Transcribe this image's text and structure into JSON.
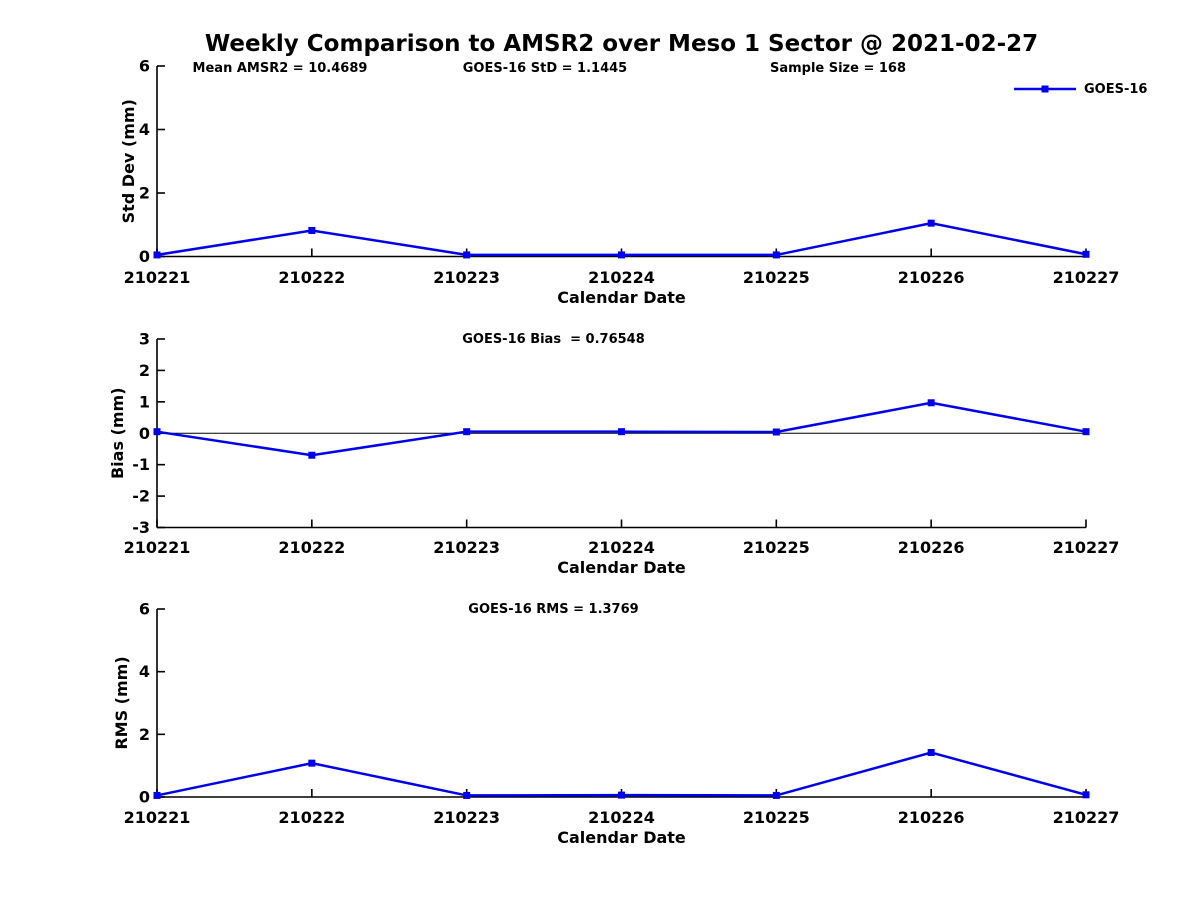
{
  "figure": {
    "title": "Weekly Comparison to AMSR2 over Meso 1 Sector @ 2021-02-27",
    "background_color": "#ffffff",
    "line_color": "#0000EE",
    "axis_color": "#000000",
    "legend": {
      "label": "GOES-16",
      "marker": "filled-square",
      "position": "upper-right"
    }
  },
  "chart_data": [
    {
      "type": "line",
      "panel": "std-dev",
      "annotations": [
        "Mean AMSR2 = 10.4689",
        "GOES-16 StD = 1.1445",
        "Sample Size = 168"
      ],
      "x": [
        "210221",
        "210222",
        "210223",
        "210224",
        "210225",
        "210226",
        "210227"
      ],
      "series": [
        {
          "name": "GOES-16",
          "values": [
            0.05,
            0.82,
            0.05,
            0.05,
            0.05,
            1.05,
            0.07
          ]
        }
      ],
      "xlabel": "Calendar Date",
      "ylabel": "Std Dev (mm)",
      "ylim": [
        0,
        6
      ],
      "yticks": [
        0,
        2,
        4,
        6
      ],
      "grid": false,
      "zero_line": false
    },
    {
      "type": "line",
      "panel": "bias",
      "annotations": [
        "GOES-16 Bias  = 0.76548"
      ],
      "x": [
        "210221",
        "210222",
        "210223",
        "210224",
        "210225",
        "210226",
        "210227"
      ],
      "series": [
        {
          "name": "GOES-16",
          "values": [
            0.05,
            -0.7,
            0.05,
            0.05,
            0.04,
            0.97,
            0.05
          ]
        }
      ],
      "xlabel": "Calendar Date",
      "ylabel": "Bias (mm)",
      "ylim": [
        -3,
        3
      ],
      "yticks": [
        -3,
        -2,
        -1,
        0,
        1,
        2,
        3
      ],
      "grid": false,
      "zero_line": true
    },
    {
      "type": "line",
      "panel": "rms",
      "annotations": [
        "GOES-16 RMS = 1.3769"
      ],
      "x": [
        "210221",
        "210222",
        "210223",
        "210224",
        "210225",
        "210226",
        "210227"
      ],
      "series": [
        {
          "name": "GOES-16",
          "values": [
            0.05,
            1.08,
            0.05,
            0.06,
            0.05,
            1.42,
            0.07
          ]
        }
      ],
      "xlabel": "Calendar Date",
      "ylabel": "RMS (mm)",
      "ylim": [
        0,
        6
      ],
      "yticks": [
        0,
        2,
        4,
        6
      ],
      "grid": false,
      "zero_line": false
    }
  ]
}
